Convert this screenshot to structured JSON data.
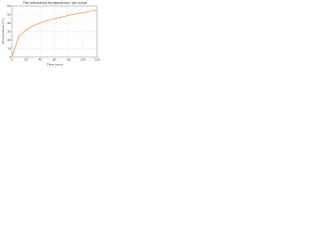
{
  "chart_data": {
    "type": "line",
    "title": "The simulated temperature rise curve",
    "x_label": "Time (min)",
    "y_label": "Temperature (°C)",
    "x": [
      0,
      10,
      20,
      30,
      40,
      50,
      60,
      70,
      80,
      90,
      100,
      110,
      120
    ],
    "series": [
      {
        "name": "Temperature",
        "color": "#f5a04a",
        "values": [
          0,
          25,
          32,
          37,
          40,
          43,
          45,
          47,
          49,
          51,
          52,
          54,
          55
        ]
      }
    ],
    "xlim": [
      0,
      120
    ],
    "xticks": [
      0,
      20,
      40,
      60,
      80,
      100,
      120
    ],
    "ylim": [
      0,
      60
    ],
    "yticks": [
      0,
      10,
      20,
      30,
      40,
      50,
      60
    ],
    "grid": true
  }
}
